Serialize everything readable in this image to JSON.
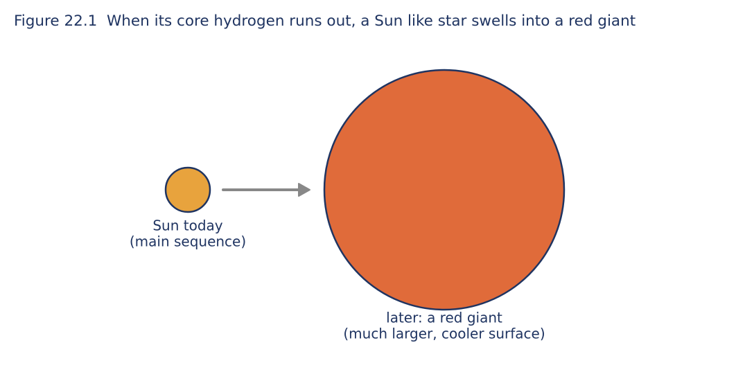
{
  "title": "Figure 22.1  When its core hydrogen runs out, a Sun like star swells into a red giant",
  "nodes": [
    {
      "label": [
        "Sun today",
        "(main sequence)"
      ]
    },
    {
      "label": [
        "later: a red giant",
        "(much larger, cooler surface)"
      ]
    }
  ]
}
